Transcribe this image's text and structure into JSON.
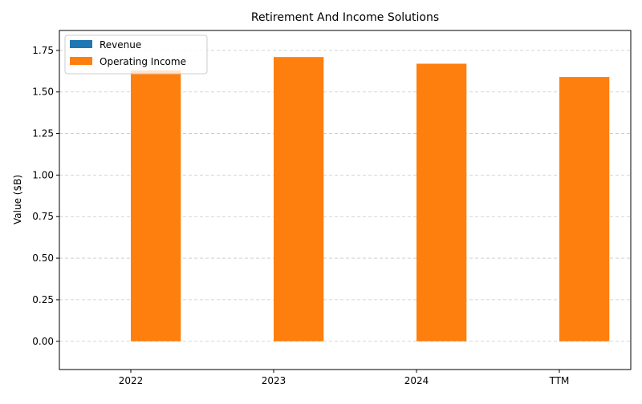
{
  "chart_data": {
    "type": "bar",
    "title": "Retirement And Income Solutions",
    "xlabel": "",
    "ylabel": "Value ($B)",
    "categories": [
      "2022",
      "2023",
      "2024",
      "TTM"
    ],
    "series": [
      {
        "name": "Revenue",
        "values": [
          0,
          0,
          0,
          0
        ],
        "color": "#1f77b4"
      },
      {
        "name": "Operating Income",
        "values": [
          1.63,
          1.71,
          1.67,
          1.59
        ],
        "color": "#ff7f0e"
      }
    ],
    "ylim": [
      -0.17,
      1.87
    ],
    "yticks": [
      "0.00",
      "0.25",
      "0.50",
      "0.75",
      "1.00",
      "1.25",
      "1.50",
      "1.75"
    ],
    "grid": true,
    "legend": "top-left"
  }
}
